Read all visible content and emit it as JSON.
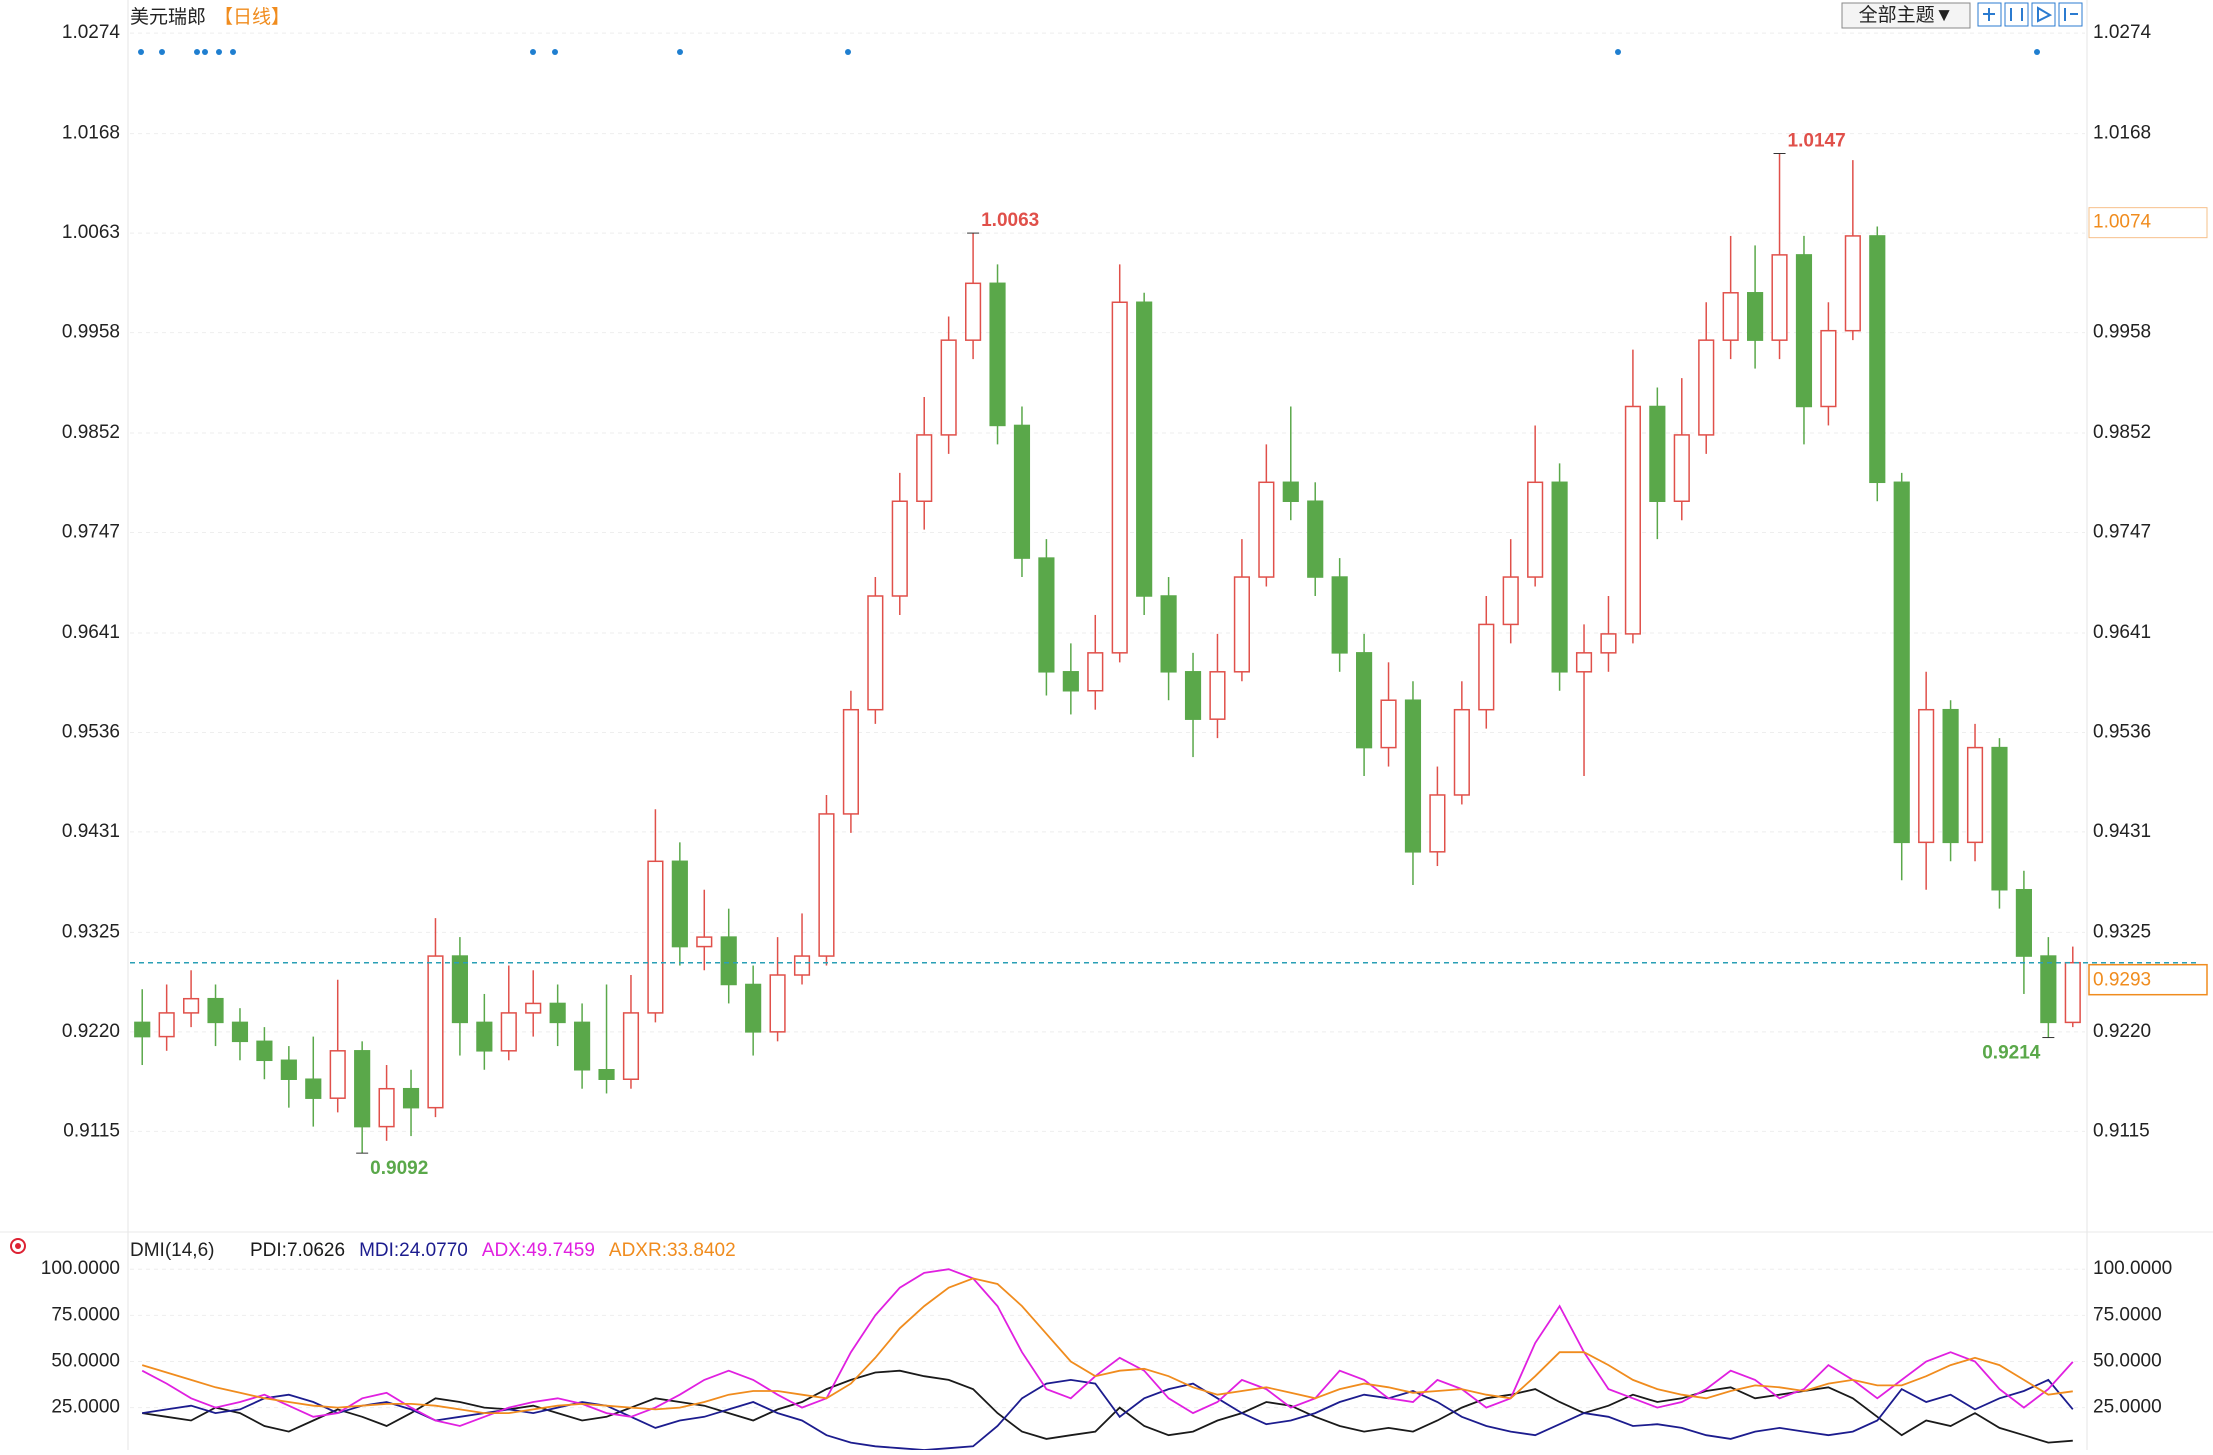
{
  "toolbar": {
    "theme_button": "全部主题▼"
  },
  "chart_data": [
    {
      "type": "candlestick",
      "title": "美元瑞郎",
      "subtitle": "【日线】",
      "open": [
        0.923,
        0.9215,
        0.924,
        0.9255,
        0.923,
        0.921,
        0.919,
        0.917,
        0.915,
        0.92,
        0.912,
        0.916,
        0.914,
        0.93,
        0.923,
        0.92,
        0.924,
        0.925,
        0.923,
        0.918,
        0.917,
        0.924,
        0.94,
        0.931,
        0.932,
        0.927,
        0.922,
        0.928,
        0.93,
        0.945,
        0.956,
        0.968,
        0.978,
        0.985,
        0.995,
        1.001,
        0.986,
        0.972,
        0.96,
        0.958,
        0.962,
        0.999,
        0.968,
        0.96,
        0.955,
        0.96,
        0.97,
        0.98,
        0.978,
        0.97,
        0.962,
        0.952,
        0.957,
        0.941,
        0.947,
        0.956,
        0.965,
        0.97,
        0.98,
        0.96,
        0.962,
        0.964,
        0.988,
        0.978,
        0.985,
        0.995,
        1.0,
        0.995,
        1.004,
        0.988,
        0.996,
        1.006,
        0.98,
        0.942,
        0.956,
        0.942,
        0.952,
        0.937,
        0.93,
        0.923
      ],
      "high": [
        0.9265,
        0.927,
        0.9285,
        0.927,
        0.9245,
        0.9225,
        0.9205,
        0.9215,
        0.9275,
        0.921,
        0.9185,
        0.918,
        0.934,
        0.932,
        0.926,
        0.929,
        0.9285,
        0.927,
        0.925,
        0.927,
        0.928,
        0.9455,
        0.942,
        0.937,
        0.935,
        0.929,
        0.932,
        0.9345,
        0.947,
        0.958,
        0.97,
        0.981,
        0.989,
        0.9975,
        1.0063,
        1.003,
        0.988,
        0.974,
        0.963,
        0.966,
        1.003,
        1.0,
        0.97,
        0.962,
        0.964,
        0.974,
        0.984,
        0.988,
        0.98,
        0.972,
        0.964,
        0.961,
        0.959,
        0.95,
        0.959,
        0.968,
        0.974,
        0.986,
        0.982,
        0.965,
        0.968,
        0.994,
        0.99,
        0.991,
        0.999,
        1.006,
        1.005,
        1.0147,
        1.006,
        0.999,
        1.014,
        1.007,
        0.981,
        0.96,
        0.957,
        0.9545,
        0.953,
        0.939,
        0.932,
        0.931
      ],
      "low": [
        0.9185,
        0.92,
        0.9225,
        0.9205,
        0.919,
        0.917,
        0.914,
        0.912,
        0.9135,
        0.9092,
        0.9105,
        0.911,
        0.913,
        0.9195,
        0.918,
        0.919,
        0.9215,
        0.9205,
        0.916,
        0.9155,
        0.916,
        0.923,
        0.929,
        0.9285,
        0.925,
        0.9195,
        0.921,
        0.927,
        0.929,
        0.943,
        0.9545,
        0.966,
        0.975,
        0.983,
        0.993,
        0.984,
        0.97,
        0.9575,
        0.9555,
        0.956,
        0.961,
        0.966,
        0.957,
        0.951,
        0.953,
        0.959,
        0.969,
        0.976,
        0.968,
        0.96,
        0.949,
        0.95,
        0.9375,
        0.9395,
        0.946,
        0.954,
        0.963,
        0.969,
        0.958,
        0.949,
        0.96,
        0.963,
        0.974,
        0.976,
        0.983,
        0.993,
        0.992,
        0.993,
        0.984,
        0.986,
        0.995,
        0.978,
        0.938,
        0.937,
        0.94,
        0.94,
        0.935,
        0.926,
        0.9214,
        0.9225
      ],
      "close": [
        0.9215,
        0.924,
        0.9255,
        0.923,
        0.921,
        0.919,
        0.917,
        0.915,
        0.92,
        0.912,
        0.916,
        0.914,
        0.93,
        0.923,
        0.92,
        0.924,
        0.925,
        0.923,
        0.918,
        0.917,
        0.924,
        0.94,
        0.931,
        0.932,
        0.927,
        0.922,
        0.928,
        0.93,
        0.945,
        0.956,
        0.968,
        0.978,
        0.985,
        0.995,
        1.001,
        0.986,
        0.972,
        0.96,
        0.958,
        0.962,
        0.999,
        0.968,
        0.96,
        0.955,
        0.96,
        0.97,
        0.98,
        0.978,
        0.97,
        0.962,
        0.952,
        0.957,
        0.941,
        0.947,
        0.956,
        0.965,
        0.97,
        0.98,
        0.96,
        0.962,
        0.964,
        0.988,
        0.978,
        0.985,
        0.995,
        1.0,
        0.995,
        1.004,
        0.988,
        0.996,
        1.006,
        0.98,
        0.942,
        0.956,
        0.942,
        0.952,
        0.937,
        0.93,
        0.923,
        0.9293
      ],
      "up_color": "#e0504a",
      "down_color": "#5aa84a",
      "price_marker": 1.0074,
      "ylim": [
        0.9013,
        1.029
      ],
      "yticks": [
        0.9115,
        {
          "value": 0.922,
          "label": "0.9220"
        },
        0.9325,
        0.9431,
        0.9536,
        0.9641,
        0.9747,
        0.9852,
        0.9958,
        1.0063,
        1.0168,
        1.0274
      ],
      "grid": true
    },
    {
      "type": "line",
      "title": "DMI(14,6)",
      "series": [
        {
          "name": "PDI:7.0626",
          "color": "#1a1a1a",
          "values": [
            22,
            20,
            18,
            25,
            22,
            15,
            12,
            18,
            24,
            20,
            15,
            22,
            30,
            28,
            25,
            24,
            26,
            22,
            18,
            20,
            25,
            30,
            28,
            26,
            22,
            18,
            24,
            28,
            35,
            40,
            44,
            45,
            42,
            40,
            35,
            22,
            12,
            8,
            10,
            12,
            25,
            15,
            10,
            12,
            18,
            22,
            28,
            26,
            20,
            15,
            12,
            14,
            12,
            18,
            25,
            30,
            32,
            35,
            28,
            22,
            26,
            32,
            28,
            30,
            34,
            36,
            30,
            32,
            34,
            36,
            30,
            20,
            10,
            18,
            15,
            22,
            14,
            10,
            6,
            7.0626
          ]
        },
        {
          "name": "MDI:24.0770",
          "color": "#1c1c8e",
          "values": [
            22,
            24,
            26,
            22,
            24,
            30,
            32,
            28,
            22,
            26,
            28,
            24,
            18,
            20,
            22,
            24,
            22,
            25,
            28,
            26,
            20,
            14,
            18,
            20,
            24,
            28,
            22,
            18,
            10,
            6,
            4,
            3,
            2,
            3,
            4,
            15,
            30,
            38,
            40,
            38,
            20,
            30,
            35,
            38,
            30,
            22,
            16,
            18,
            22,
            28,
            32,
            30,
            34,
            28,
            20,
            15,
            12,
            10,
            16,
            22,
            20,
            15,
            16,
            14,
            10,
            8,
            12,
            14,
            12,
            10,
            12,
            18,
            35,
            28,
            32,
            24,
            30,
            34,
            40,
            24.077
          ]
        },
        {
          "name": "ADX:49.7459",
          "color": "#e020e0",
          "values": [
            45,
            38,
            30,
            25,
            28,
            32,
            26,
            20,
            22,
            30,
            33,
            25,
            18,
            15,
            20,
            25,
            28,
            30,
            27,
            22,
            20,
            25,
            32,
            40,
            45,
            40,
            32,
            25,
            30,
            55,
            75,
            90,
            98,
            100,
            95,
            80,
            55,
            35,
            30,
            42,
            52,
            45,
            30,
            22,
            28,
            40,
            35,
            25,
            30,
            45,
            40,
            30,
            28,
            40,
            35,
            25,
            30,
            60,
            80,
            55,
            35,
            30,
            25,
            28,
            35,
            45,
            40,
            30,
            35,
            48,
            40,
            30,
            40,
            50,
            55,
            50,
            35,
            25,
            35,
            49.7459
          ]
        },
        {
          "name": "ADXR:33.8402",
          "color": "#f08c1e",
          "values": [
            48,
            44,
            40,
            36,
            33,
            30,
            28,
            26,
            25,
            26,
            27,
            27,
            26,
            24,
            22,
            22,
            24,
            26,
            27,
            26,
            25,
            24,
            25,
            28,
            32,
            34,
            34,
            32,
            30,
            38,
            52,
            68,
            80,
            90,
            95,
            92,
            80,
            65,
            50,
            42,
            45,
            46,
            42,
            36,
            32,
            34,
            36,
            33,
            30,
            35,
            38,
            36,
            33,
            34,
            35,
            32,
            30,
            42,
            55,
            55,
            48,
            40,
            35,
            32,
            30,
            34,
            37,
            36,
            34,
            38,
            40,
            37,
            37,
            42,
            48,
            52,
            48,
            40,
            32,
            33.8402
          ]
        }
      ],
      "ylim": [
        2,
        105
      ],
      "yticks": [
        {
          "value": 25,
          "label": "25.0000"
        },
        {
          "value": 50,
          "label": "50.0000"
        },
        {
          "value": 75,
          "label": "75.0000"
        },
        {
          "value": 100,
          "label": "100.0000"
        }
      ]
    }
  ]
}
